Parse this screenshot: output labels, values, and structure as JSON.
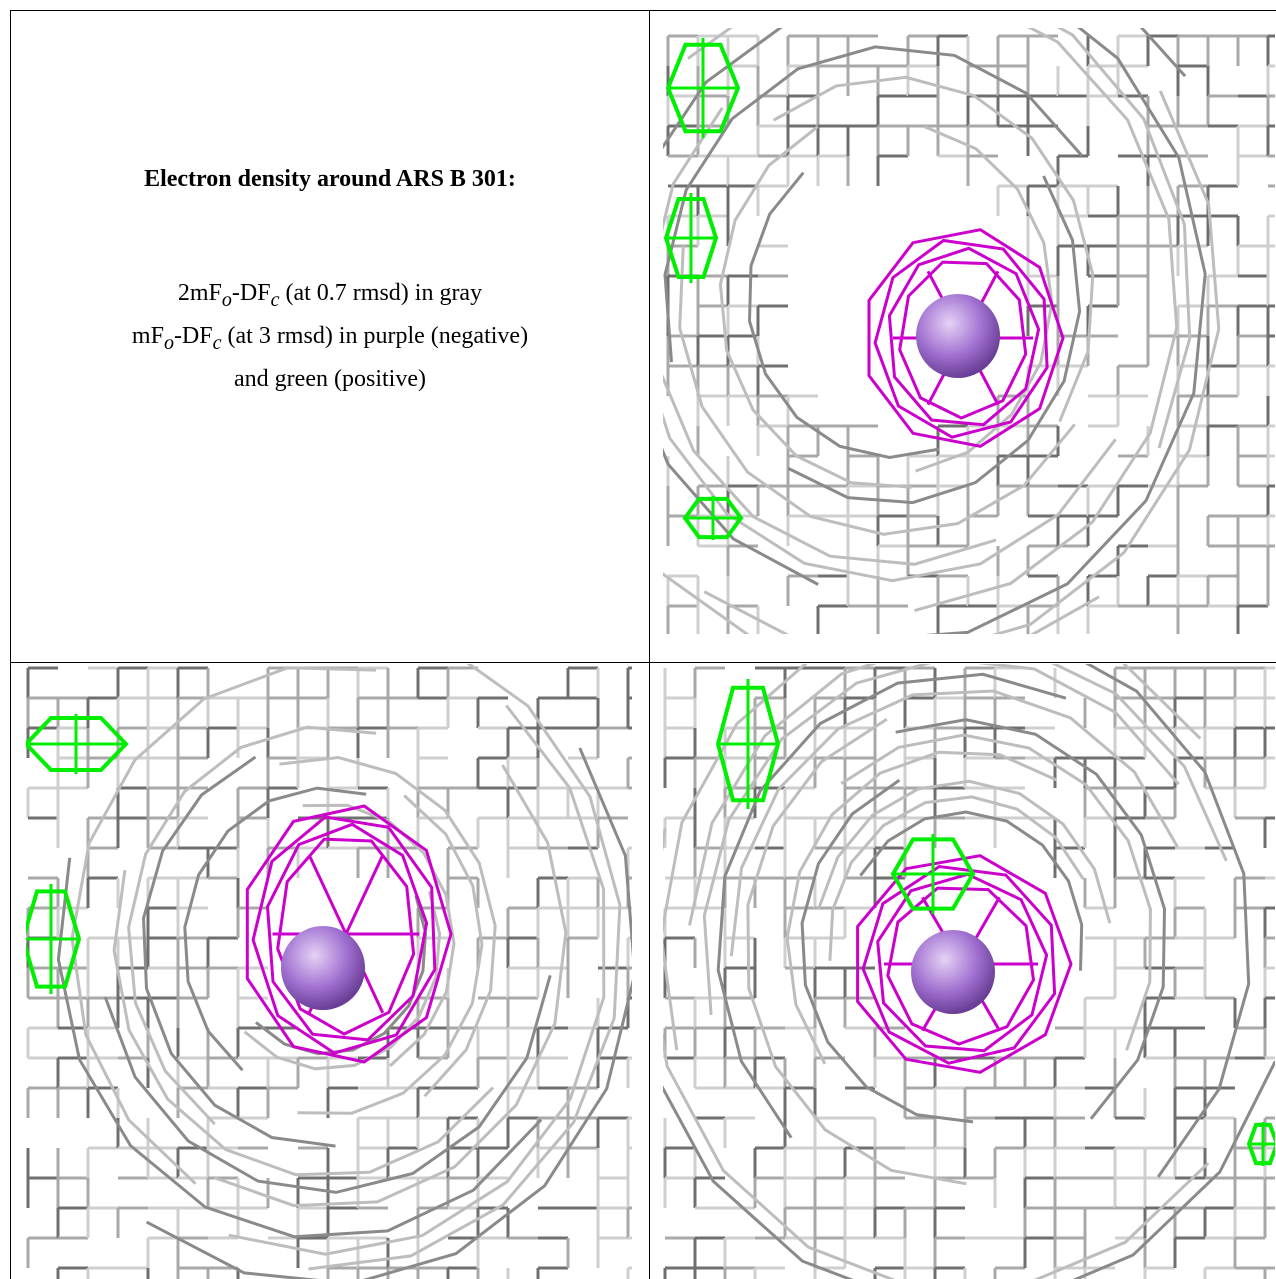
{
  "caption": {
    "title": "Electron density around ARS B 301:",
    "line1_a": "2mF",
    "line1_o": "o",
    "line1_b": "-DF",
    "line1_c": "c",
    "line1_rest": " (at 0.7 rmsd) in gray",
    "line2_a": "mF",
    "line2_o": "o",
    "line2_b": "-DF",
    "line2_c": "c",
    "line2_rest": " (at 3 rmsd) in purple (negative)",
    "line3": "and green (positive)"
  },
  "colors": {
    "mesh_gray": "#8c8c8c",
    "mesh_light": "#c8c8c8",
    "negative_purple": "#cc00cc",
    "positive_green": "#00ee00",
    "atom_sphere": "#a070d0"
  },
  "panels": [
    {
      "name": "view-1",
      "icon": "density-mesh-view"
    },
    {
      "name": "view-2",
      "icon": "density-mesh-view"
    },
    {
      "name": "view-3",
      "icon": "density-mesh-view"
    }
  ]
}
